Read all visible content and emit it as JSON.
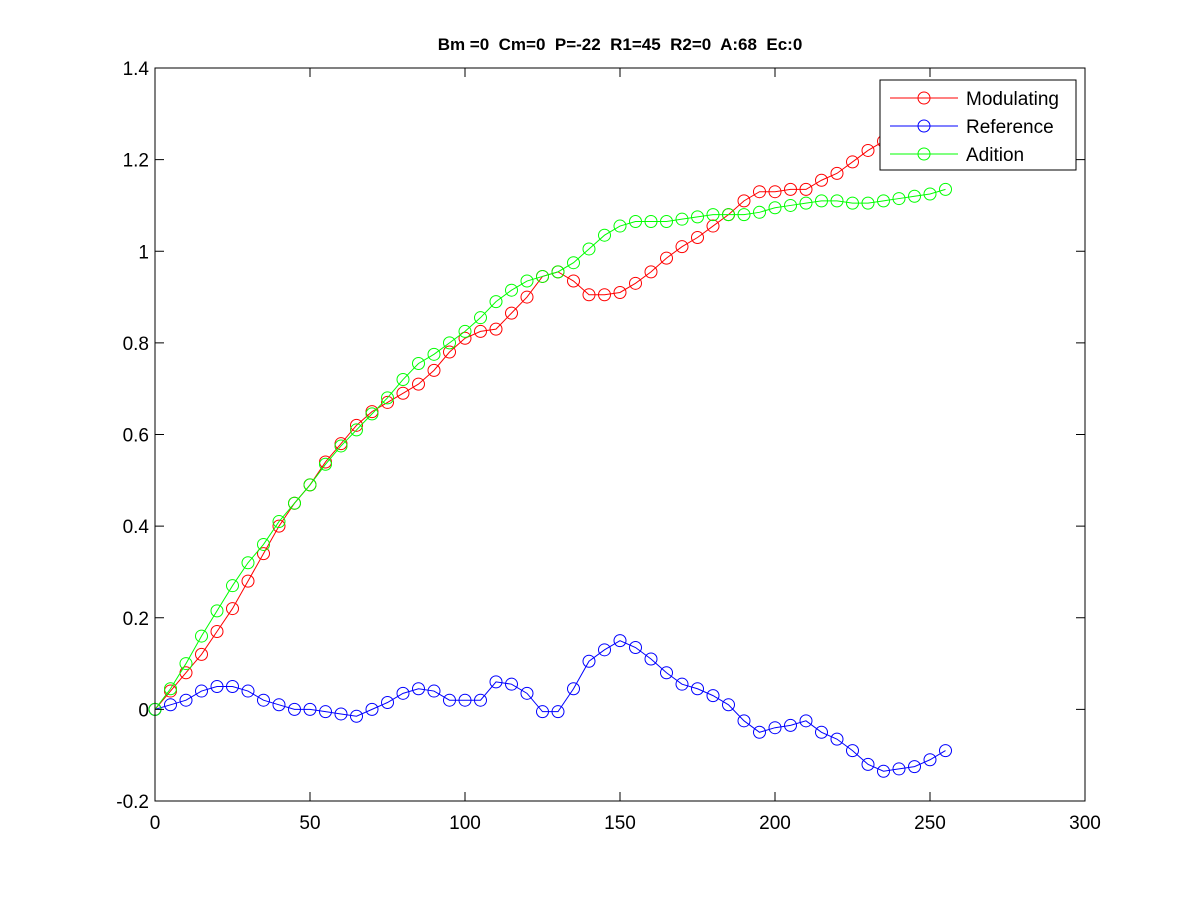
{
  "chart_data": {
    "type": "line",
    "title": "Bm =0  Cm=0  P=-22  R1=45  R2=0  A:68  Ec:0",
    "xlabel": "",
    "ylabel": "",
    "xlim": [
      0,
      300
    ],
    "ylim": [
      -0.2,
      1.4
    ],
    "x_ticks": [
      0,
      50,
      100,
      150,
      200,
      250,
      300
    ],
    "x_tick_labels": [
      "0",
      "50",
      "100",
      "150",
      "200",
      "250",
      "300"
    ],
    "y_ticks": [
      -0.2,
      0,
      0.2,
      0.4,
      0.6,
      0.8,
      1,
      1.2,
      1.4
    ],
    "y_tick_labels": [
      "-0.2",
      "0",
      "0.2",
      "0.4",
      "0.6",
      "0.8",
      "1",
      "1.2",
      "1.4"
    ],
    "grid": false,
    "legend_position": "top-right",
    "marker": "circle",
    "x": [
      0,
      5,
      10,
      15,
      20,
      25,
      30,
      35,
      40,
      45,
      50,
      55,
      60,
      65,
      70,
      75,
      80,
      85,
      90,
      95,
      100,
      105,
      110,
      115,
      120,
      125,
      130,
      135,
      140,
      145,
      150,
      155,
      160,
      165,
      170,
      175,
      180,
      185,
      190,
      195,
      200,
      205,
      210,
      215,
      220,
      225,
      230,
      235,
      240,
      245,
      250,
      255
    ],
    "series": [
      {
        "name": "Modulating",
        "color": "#ff0000",
        "values": [
          0,
          0.04,
          0.08,
          0.12,
          0.17,
          0.22,
          0.28,
          0.34,
          0.4,
          0.45,
          0.49,
          0.54,
          0.58,
          0.62,
          0.65,
          0.67,
          0.69,
          0.71,
          0.74,
          0.78,
          0.81,
          0.825,
          0.83,
          0.865,
          0.9,
          0.945,
          0.955,
          0.935,
          0.905,
          0.905,
          0.91,
          0.93,
          0.955,
          0.985,
          1.01,
          1.03,
          1.055,
          1.08,
          1.11,
          1.13,
          1.13,
          1.135,
          1.135,
          1.155,
          1.17,
          1.195,
          1.22,
          1.24,
          1.255,
          1.27,
          1.285,
          1.3
        ]
      },
      {
        "name": "Reference",
        "color": "#0000ff",
        "values": [
          0,
          0.01,
          0.02,
          0.04,
          0.05,
          0.05,
          0.04,
          0.02,
          0.01,
          0,
          0,
          -0.005,
          -0.01,
          -0.015,
          0,
          0.015,
          0.035,
          0.045,
          0.04,
          0.02,
          0.02,
          0.02,
          0.06,
          0.055,
          0.035,
          -0.005,
          -0.005,
          0.045,
          0.105,
          0.13,
          0.15,
          0.135,
          0.11,
          0.08,
          0.055,
          0.045,
          0.03,
          0.01,
          -0.025,
          -0.05,
          -0.04,
          -0.035,
          -0.025,
          -0.05,
          -0.065,
          -0.09,
          -0.12,
          -0.135,
          -0.13,
          -0.125,
          -0.11,
          -0.09
        ]
      },
      {
        "name": "Adition",
        "color": "#00ff00",
        "values": [
          0,
          0.045,
          0.1,
          0.16,
          0.215,
          0.27,
          0.32,
          0.36,
          0.41,
          0.45,
          0.49,
          0.535,
          0.575,
          0.61,
          0.645,
          0.68,
          0.72,
          0.755,
          0.775,
          0.8,
          0.825,
          0.855,
          0.89,
          0.915,
          0.935,
          0.945,
          0.955,
          0.975,
          1.005,
          1.035,
          1.055,
          1.065,
          1.065,
          1.065,
          1.07,
          1.075,
          1.08,
          1.08,
          1.08,
          1.085,
          1.095,
          1.1,
          1.105,
          1.11,
          1.11,
          1.105,
          1.105,
          1.11,
          1.115,
          1.12,
          1.125,
          1.135
        ]
      }
    ]
  }
}
